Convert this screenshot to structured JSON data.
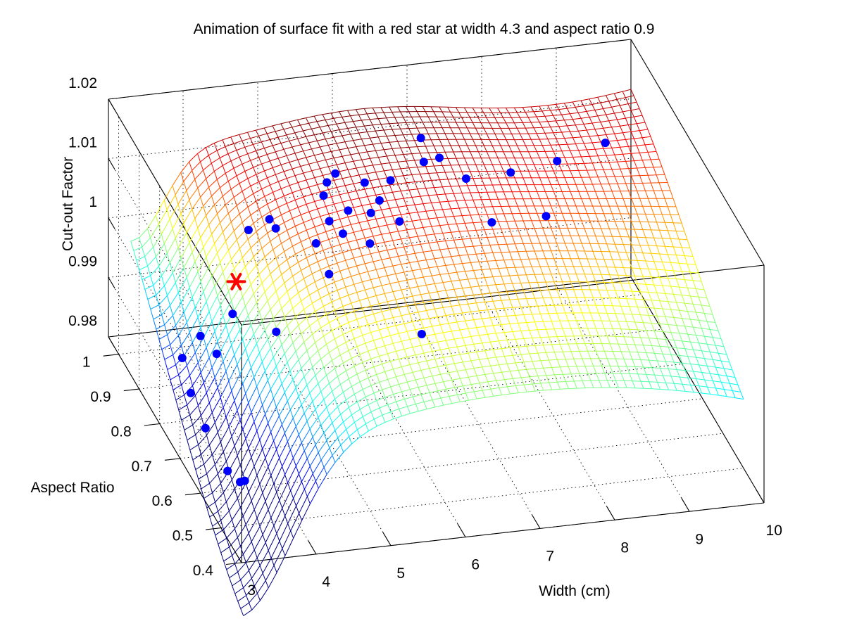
{
  "chart_data": {
    "type": "surface",
    "title": "Animation of surface fit with a red star at width 4.3 and aspect ratio 0.9",
    "xlabel": "Width (cm)",
    "ylabel": "Aspect Ratio",
    "zlabel": "Cut-out Factor",
    "xlim": [
      3,
      10
    ],
    "ylim": [
      0.4,
      1.05
    ],
    "zlim": [
      0.98,
      1.02
    ],
    "x_ticks": [
      "3",
      "4",
      "5",
      "6",
      "7",
      "8",
      "9",
      "10"
    ],
    "y_ticks": [
      "0.4",
      "0.5",
      "0.6",
      "0.7",
      "0.8",
      "0.9",
      "1"
    ],
    "z_ticks": [
      "0.98",
      "0.99",
      "1",
      "1.01",
      "1.02"
    ],
    "grid": true,
    "colormap": "jet",
    "surface_range": {
      "x": [
        3.3,
        10
      ],
      "y": [
        0.5,
        1.05
      ]
    },
    "marker": {
      "symbol": "*",
      "color": "#ff0000",
      "width": 4.3,
      "aspect_ratio": 0.9,
      "z": 0.9962
    },
    "point_color": "#0000ff",
    "points": [
      {
        "x": 3.12,
        "y": 0.62,
        "z": 0.9896
      },
      {
        "x": 3.31,
        "y": 0.52,
        "z": 0.9861
      },
      {
        "x": 3.28,
        "y": 0.57,
        "z": 0.9851
      },
      {
        "x": 3.4,
        "y": 0.53,
        "z": 0.9856
      },
      {
        "x": 3.28,
        "y": 0.75,
        "z": 0.9877
      },
      {
        "x": 3.33,
        "y": 0.81,
        "z": 0.99
      },
      {
        "x": 3.52,
        "y": 0.79,
        "z": 0.9946
      },
      {
        "x": 3.6,
        "y": 0.74,
        "z": 0.9944
      },
      {
        "x": 3.95,
        "y": 0.79,
        "z": 0.9977
      },
      {
        "x": 4.37,
        "y": 0.73,
        "z": 0.9976
      },
      {
        "x": 4.52,
        "y": 0.92,
        "z": 1.0034
      },
      {
        "x": 4.83,
        "y": 0.9,
        "z": 1.0044
      },
      {
        "x": 4.8,
        "y": 0.92,
        "z": 1.0048
      },
      {
        "x": 5.27,
        "y": 0.8,
        "z": 1.0019
      },
      {
        "x": 5.26,
        "y": 0.86,
        "z": 1.0036
      },
      {
        "x": 5.52,
        "y": 0.89,
        "z": 1.0052
      },
      {
        "x": 5.58,
        "y": 0.94,
        "z": 1.0065
      },
      {
        "x": 5.68,
        "y": 0.96,
        "z": 1.0074
      },
      {
        "x": 5.62,
        "y": 0.86,
        "z": 1.0047
      },
      {
        "x": 5.82,
        "y": 0.97,
        "z": 1.0081
      },
      {
        "x": 5.8,
        "y": 0.9,
        "z": 1.006
      },
      {
        "x": 5.9,
        "y": 0.83,
        "z": 1.0044
      },
      {
        "x": 6.05,
        "y": 0.88,
        "z": 1.0064
      },
      {
        "x": 6.13,
        "y": 0.94,
        "z": 1.0079
      },
      {
        "x": 6.22,
        "y": 0.9,
        "z": 1.0071
      },
      {
        "x": 6.35,
        "y": 0.85,
        "z": 1.0063
      },
      {
        "x": 6.45,
        "y": 0.93,
        "z": 1.0084
      },
      {
        "x": 6.95,
        "y": 0.95,
        "z": 1.0096
      },
      {
        "x": 7.02,
        "y": 0.99,
        "z": 1.0112
      },
      {
        "x": 7.16,
        "y": 0.95,
        "z": 1.01
      },
      {
        "x": 7.38,
        "y": 0.9,
        "z": 1.0091
      },
      {
        "x": 7.45,
        "y": 0.8,
        "z": 1.0075
      },
      {
        "x": 7.95,
        "y": 0.89,
        "z": 1.0099
      },
      {
        "x": 8.15,
        "y": 0.79,
        "z": 1.0081
      },
      {
        "x": 8.6,
        "y": 0.9,
        "z": 1.0103
      },
      {
        "x": 9.3,
        "y": 0.92,
        "z": 1.0112
      },
      {
        "x": 6.1,
        "y": 0.65,
        "z": 0.9994
      }
    ]
  }
}
